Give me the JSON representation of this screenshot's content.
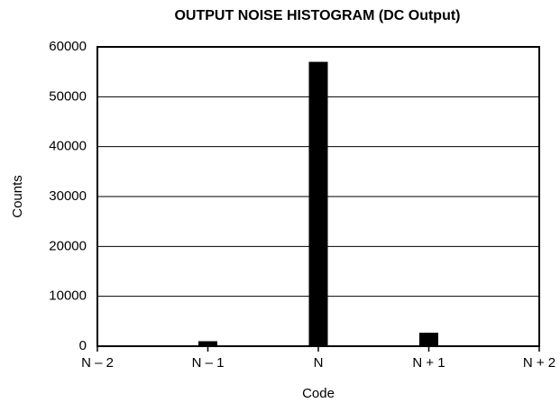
{
  "chart_data": {
    "type": "bar",
    "title": "OUTPUT NOISE HISTOGRAM (DC Output)",
    "x_label": "Code",
    "y_label": "Counts",
    "categories": [
      "N – 2",
      "N – 1",
      "N",
      "N + 1",
      "N + 2"
    ],
    "values": [
      0,
      1000,
      57000,
      2700,
      0
    ],
    "color": "#000000",
    "ylim": [
      0,
      60000
    ],
    "yticks": [
      0,
      10000,
      20000,
      30000,
      40000,
      50000,
      60000
    ],
    "grid": true
  }
}
